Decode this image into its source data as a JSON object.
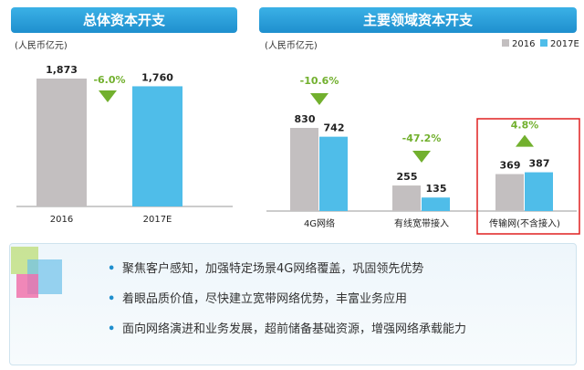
{
  "left_panel": {
    "title": "总体资本开支",
    "unit": "(人民币亿元)"
  },
  "right_panel": {
    "title": "主要领域资本开支",
    "unit": "(人民币亿元)"
  },
  "bullets": [
    "聚焦客户感知，加强特定场景4G网络覆盖，巩固领先优势",
    "着眼品质价值，尽快建立宽带网络优势，丰富业务应用",
    "面向网络演进和业务发展，超前储备基础资源，增强网络承载能力"
  ],
  "colors": {
    "gray_bar": "#c3bfc0",
    "blue_bar": "#4fbde9",
    "green_arrow": "#72b02e",
    "banner": "#2a9fd8",
    "highlight": "#e02020"
  },
  "chart_data": [
    {
      "type": "bar",
      "categories": [
        "2016",
        "2017E"
      ],
      "values": [
        1873,
        1760
      ],
      "value_labels": [
        "1,873",
        "1,760"
      ],
      "change_label": "-6.0%",
      "ylim": [
        0,
        2000
      ]
    },
    {
      "type": "bar",
      "categories": [
        "4G网络",
        "有线宽带接入",
        "传输网(不含接入)"
      ],
      "series": [
        {
          "name": "2016",
          "values": [
            830,
            255,
            369
          ]
        },
        {
          "name": "2017E",
          "values": [
            742,
            135,
            387
          ]
        }
      ],
      "change_labels": [
        "-10.6%",
        "-47.2%",
        "4.8%"
      ],
      "change_direction": [
        "down",
        "down",
        "up"
      ],
      "highlighted_category": "传输网(不含接入)",
      "legend_position": "top-right",
      "ylim": [
        0,
        1000
      ]
    }
  ]
}
